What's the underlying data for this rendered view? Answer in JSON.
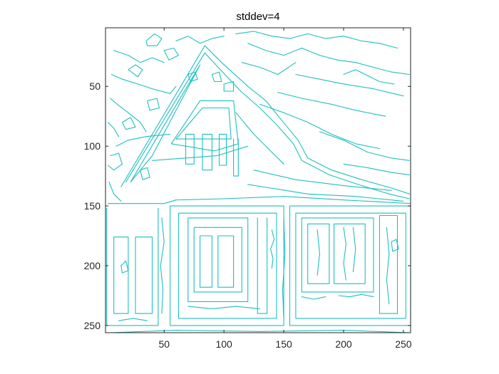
{
  "chart_data": {
    "type": "contour",
    "title": "stddev=4",
    "xlabel": "",
    "ylabel": "",
    "xlim": [
      1,
      256
    ],
    "ylim": [
      1,
      256
    ],
    "y_reversed": true,
    "xticks": [
      50,
      100,
      150,
      200,
      250
    ],
    "yticks": [
      50,
      100,
      150,
      200,
      250
    ],
    "grid": false,
    "line_color": "#1fbfbf",
    "axis_color": "#262626",
    "polylines": [
      [
        [
          1,
          1
        ],
        [
          256,
          1
        ],
        [
          256,
          256
        ],
        [
          1,
          256
        ],
        [
          1,
          1
        ]
      ],
      [
        [
          14,
          134
        ],
        [
          84,
          16
        ],
        [
          98,
          30
        ],
        [
          120,
          50
        ],
        [
          135,
          62
        ],
        [
          148,
          78
        ],
        [
          162,
          95
        ],
        [
          170,
          110
        ],
        [
          190,
          120
        ],
        [
          215,
          128
        ],
        [
          240,
          135
        ],
        [
          255,
          140
        ]
      ],
      [
        [
          18,
          130
        ],
        [
          84,
          22
        ],
        [
          97,
          36
        ],
        [
          114,
          54
        ],
        [
          130,
          68
        ],
        [
          144,
          82
        ],
        [
          158,
          98
        ],
        [
          165,
          112
        ],
        [
          188,
          124
        ],
        [
          212,
          132
        ],
        [
          238,
          140
        ],
        [
          255,
          144
        ]
      ],
      [
        [
          22,
          130
        ],
        [
          80,
          32
        ],
        [
          60,
          70
        ],
        [
          40,
          108
        ],
        [
          22,
          130
        ]
      ],
      [
        [
          40,
          112
        ],
        [
          94,
          108
        ],
        [
          120,
          100
        ]
      ],
      [
        [
          56,
          98
        ],
        [
          80,
          62
        ],
        [
          108,
          62
        ],
        [
          112,
          98
        ],
        [
          92,
          104
        ],
        [
          56,
          98
        ]
      ],
      [
        [
          60,
          94
        ],
        [
          82,
          68
        ],
        [
          104,
          68
        ],
        [
          106,
          94
        ],
        [
          60,
          94
        ]
      ],
      [
        [
          68,
          90
        ],
        [
          68,
          115
        ],
        [
          75,
          115
        ],
        [
          75,
          90
        ],
        [
          68,
          90
        ]
      ],
      [
        [
          82,
          90
        ],
        [
          82,
          120
        ],
        [
          90,
          120
        ],
        [
          90,
          90
        ],
        [
          82,
          90
        ]
      ],
      [
        [
          96,
          90
        ],
        [
          96,
          116
        ],
        [
          102,
          116
        ],
        [
          102,
          90
        ],
        [
          96,
          90
        ]
      ],
      [
        [
          108,
          94
        ],
        [
          108,
          125
        ],
        [
          112,
          125
        ],
        [
          112,
          94
        ]
      ],
      [
        [
          10,
          100
        ],
        [
          20,
          95
        ],
        [
          35,
          92
        ],
        [
          55,
          90
        ]
      ],
      [
        [
          5,
          108
        ],
        [
          12,
          106
        ],
        [
          15,
          115
        ],
        [
          8,
          120
        ],
        [
          3,
          116
        ]
      ],
      [
        [
          55,
          150
        ],
        [
          55,
          250
        ],
        [
          150,
          250
        ],
        [
          150,
          150
        ],
        [
          55,
          150
        ]
      ],
      [
        [
          62,
          156
        ],
        [
          62,
          244
        ],
        [
          144,
          244
        ],
        [
          144,
          156
        ],
        [
          62,
          156
        ]
      ],
      [
        [
          70,
          160
        ],
        [
          70,
          230
        ],
        [
          120,
          230
        ],
        [
          120,
          160
        ],
        [
          70,
          160
        ]
      ],
      [
        [
          75,
          168
        ],
        [
          75,
          222
        ],
        [
          115,
          222
        ],
        [
          115,
          168
        ],
        [
          75,
          168
        ]
      ],
      [
        [
          80,
          175
        ],
        [
          80,
          218
        ],
        [
          90,
          218
        ],
        [
          90,
          175
        ],
        [
          80,
          175
        ]
      ],
      [
        [
          95,
          175
        ],
        [
          95,
          218
        ],
        [
          108,
          218
        ],
        [
          108,
          175
        ],
        [
          95,
          175
        ]
      ],
      [
        [
          128,
          160
        ],
        [
          128,
          240
        ],
        [
          136,
          240
        ],
        [
          136,
          160
        ]
      ],
      [
        [
          155,
          150
        ],
        [
          155,
          250
        ],
        [
          256,
          250
        ],
        [
          256,
          150
        ],
        [
          155,
          150
        ]
      ],
      [
        [
          160,
          156
        ],
        [
          160,
          244
        ],
        [
          252,
          244
        ],
        [
          252,
          156
        ],
        [
          160,
          156
        ]
      ],
      [
        [
          165,
          160
        ],
        [
          165,
          222
        ],
        [
          225,
          222
        ],
        [
          225,
          160
        ],
        [
          165,
          160
        ]
      ],
      [
        [
          170,
          165
        ],
        [
          170,
          215
        ],
        [
          188,
          215
        ],
        [
          188,
          165
        ],
        [
          170,
          165
        ]
      ],
      [
        [
          192,
          165
        ],
        [
          192,
          215
        ],
        [
          218,
          215
        ],
        [
          218,
          165
        ],
        [
          192,
          165
        ]
      ],
      [
        [
          230,
          158
        ],
        [
          230,
          240
        ],
        [
          245,
          240
        ],
        [
          245,
          158
        ],
        [
          230,
          158
        ]
      ],
      [
        [
          2,
          152
        ],
        [
          2,
          250
        ],
        [
          45,
          250
        ],
        [
          45,
          152
        ]
      ],
      [
        [
          8,
          176
        ],
        [
          8,
          240
        ],
        [
          20,
          240
        ],
        [
          20,
          176
        ],
        [
          8,
          176
        ]
      ],
      [
        [
          26,
          176
        ],
        [
          26,
          240
        ],
        [
          40,
          240
        ],
        [
          40,
          176
        ],
        [
          26,
          176
        ]
      ],
      [
        [
          3,
          148
        ],
        [
          50,
          148
        ],
        [
          60,
          145
        ],
        [
          100,
          144
        ],
        [
          150,
          142
        ],
        [
          200,
          145
        ],
        [
          256,
          148
        ]
      ],
      [
        [
          120,
          132
        ],
        [
          170,
          140
        ],
        [
          210,
          142
        ],
        [
          250,
          146
        ]
      ],
      [
        [
          125,
          120
        ],
        [
          160,
          128
        ],
        [
          200,
          133
        ],
        [
          240,
          137
        ]
      ],
      [
        [
          110,
          72
        ],
        [
          125,
          90
        ],
        [
          140,
          105
        ],
        [
          150,
          115
        ]
      ],
      [
        [
          130,
          65
        ],
        [
          150,
          72
        ],
        [
          170,
          80
        ],
        [
          190,
          90
        ],
        [
          210,
          98
        ],
        [
          230,
          102
        ]
      ],
      [
        [
          145,
          55
        ],
        [
          165,
          60
        ],
        [
          190,
          65
        ],
        [
          210,
          70
        ],
        [
          235,
          75
        ]
      ],
      [
        [
          160,
          40
        ],
        [
          180,
          44
        ],
        [
          200,
          48
        ],
        [
          225,
          52
        ],
        [
          250,
          58
        ]
      ],
      [
        [
          180,
          88
        ],
        [
          200,
          95
        ],
        [
          220,
          105
        ],
        [
          240,
          110
        ],
        [
          255,
          112
        ]
      ],
      [
        [
          200,
          115
        ],
        [
          220,
          118
        ],
        [
          240,
          122
        ],
        [
          255,
          124
        ]
      ],
      [
        [
          8,
          20
        ],
        [
          20,
          24
        ],
        [
          30,
          30
        ],
        [
          40,
          26
        ],
        [
          50,
          30
        ]
      ],
      [
        [
          6,
          40
        ],
        [
          15,
          44
        ],
        [
          28,
          48
        ],
        [
          40,
          52
        ],
        [
          55,
          56
        ],
        [
          60,
          50
        ]
      ],
      [
        [
          5,
          60
        ],
        [
          12,
          66
        ],
        [
          20,
          72
        ],
        [
          30,
          80
        ],
        [
          35,
          88
        ]
      ],
      [
        [
          3,
          80
        ],
        [
          8,
          85
        ],
        [
          12,
          92
        ]
      ],
      [
        [
          60,
          12
        ],
        [
          70,
          8
        ],
        [
          80,
          14
        ],
        [
          90,
          10
        ],
        [
          100,
          8
        ]
      ],
      [
        [
          110,
          6
        ],
        [
          125,
          4
        ],
        [
          140,
          8
        ],
        [
          155,
          10
        ],
        [
          170,
          6
        ],
        [
          185,
          10
        ],
        [
          200,
          8
        ],
        [
          215,
          12
        ],
        [
          230,
          14
        ],
        [
          245,
          18
        ]
      ],
      [
        [
          120,
          14
        ],
        [
          135,
          20
        ],
        [
          150,
          24
        ],
        [
          165,
          18
        ],
        [
          180,
          24
        ],
        [
          195,
          28
        ],
        [
          210,
          30
        ],
        [
          225,
          34
        ],
        [
          240,
          38
        ],
        [
          255,
          40
        ]
      ],
      [
        [
          115,
          30
        ],
        [
          130,
          34
        ],
        [
          145,
          40
        ],
        [
          160,
          30
        ]
      ],
      [
        [
          200,
          40
        ],
        [
          210,
          36
        ],
        [
          222,
          42
        ],
        [
          230,
          46
        ],
        [
          242,
          48
        ]
      ],
      [
        [
          35,
          12
        ],
        [
          42,
          6
        ],
        [
          48,
          10
        ],
        [
          44,
          16
        ],
        [
          36,
          16
        ],
        [
          35,
          12
        ]
      ],
      [
        [
          50,
          20
        ],
        [
          58,
          18
        ],
        [
          62,
          24
        ],
        [
          54,
          28
        ],
        [
          50,
          20
        ]
      ],
      [
        [
          20,
          36
        ],
        [
          26,
          32
        ],
        [
          32,
          36
        ],
        [
          28,
          42
        ],
        [
          20,
          36
        ]
      ],
      [
        [
          70,
          40
        ],
        [
          76,
          38
        ],
        [
          78,
          44
        ],
        [
          72,
          46
        ],
        [
          70,
          40
        ]
      ],
      [
        [
          36,
          62
        ],
        [
          44,
          60
        ],
        [
          46,
          68
        ],
        [
          38,
          70
        ],
        [
          36,
          62
        ]
      ],
      [
        [
          90,
          40
        ],
        [
          96,
          38
        ],
        [
          98,
          46
        ],
        [
          92,
          46
        ],
        [
          90,
          40
        ]
      ],
      [
        [
          100,
          48
        ],
        [
          108,
          46
        ],
        [
          108,
          54
        ],
        [
          100,
          54
        ],
        [
          100,
          48
        ]
      ],
      [
        [
          14,
          200
        ],
        [
          18,
          196
        ],
        [
          20,
          204
        ],
        [
          15,
          206
        ],
        [
          14,
          200
        ]
      ],
      [
        [
          5,
          256
        ],
        [
          60,
          254
        ],
        [
          130,
          255
        ],
        [
          200,
          254
        ],
        [
          256,
          256
        ]
      ],
      [
        [
          48,
          160
        ],
        [
          50,
          180
        ],
        [
          47,
          200
        ],
        [
          49,
          220
        ],
        [
          48,
          240
        ]
      ],
      [
        [
          150,
          160
        ],
        [
          151,
          190
        ],
        [
          149,
          220
        ],
        [
          150,
          245
        ]
      ],
      [
        [
          196,
          225
        ],
        [
          205,
          226
        ],
        [
          215,
          224
        ],
        [
          225,
          226
        ]
      ],
      [
        [
          165,
          226
        ],
        [
          175,
          228
        ],
        [
          185,
          226
        ]
      ],
      [
        [
          12,
          246
        ],
        [
          24,
          244
        ],
        [
          36,
          246
        ]
      ],
      [
        [
          70,
          234
        ],
        [
          90,
          236
        ],
        [
          110,
          234
        ],
        [
          130,
          236
        ]
      ],
      [
        [
          200,
          168
        ],
        [
          202,
          182
        ],
        [
          200,
          198
        ],
        [
          202,
          212
        ]
      ],
      [
        [
          208,
          168
        ],
        [
          210,
          186
        ],
        [
          208,
          205
        ]
      ],
      [
        [
          178,
          170
        ],
        [
          180,
          190
        ],
        [
          178,
          208
        ]
      ],
      [
        [
          236,
          168
        ],
        [
          238,
          190
        ],
        [
          236,
          212
        ],
        [
          238,
          232
        ]
      ],
      [
        [
          240,
          180
        ],
        [
          244,
          178
        ],
        [
          246,
          186
        ],
        [
          241,
          188
        ],
        [
          240,
          180
        ]
      ],
      [
        [
          30,
          120
        ],
        [
          36,
          118
        ],
        [
          38,
          126
        ],
        [
          32,
          128
        ],
        [
          30,
          120
        ]
      ],
      [
        [
          15,
          80
        ],
        [
          22,
          76
        ],
        [
          26,
          84
        ],
        [
          18,
          86
        ],
        [
          15,
          80
        ]
      ],
      [
        [
          140,
          170
        ],
        [
          142,
          178
        ],
        [
          139,
          186
        ],
        [
          141,
          194
        ],
        [
          140,
          202
        ]
      ],
      [
        [
          4,
          130
        ],
        [
          8,
          140
        ],
        [
          14,
          146
        ]
      ]
    ]
  }
}
